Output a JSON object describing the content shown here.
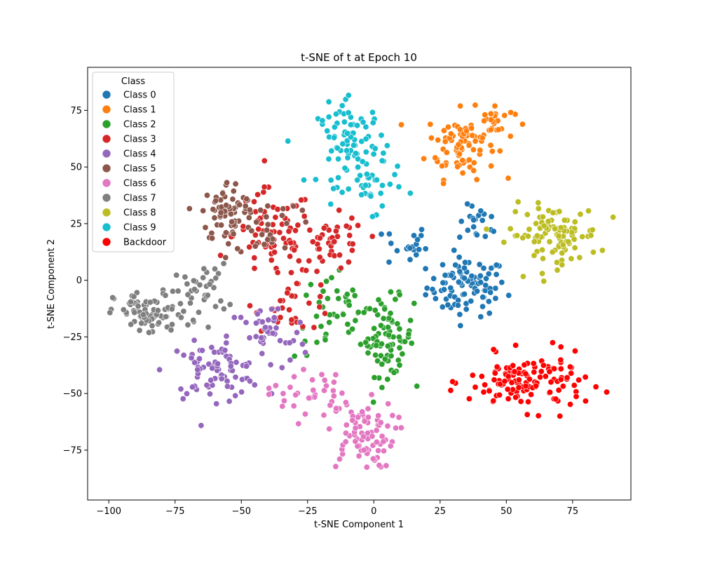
{
  "chart_data": {
    "type": "scatter",
    "title": "t-SNE of t at Epoch 10",
    "xlabel": "t-SNE Component 1",
    "ylabel": "t-SNE Component 2",
    "xlim": [
      -108,
      97
    ],
    "ylim": [
      -97,
      94
    ],
    "xticks": [
      -100,
      -75,
      -50,
      -25,
      0,
      25,
      50,
      75
    ],
    "yticks": [
      -75,
      -50,
      -25,
      0,
      25,
      50,
      75
    ],
    "grid": false,
    "legend": {
      "title": "Class",
      "placement": "top-left"
    },
    "marker_edge_color": "#ffffff",
    "series": [
      {
        "name": "Class 0",
        "color": "#1f77b4",
        "clusters": [
          {
            "cx": 35,
            "cy": -3,
            "rx": 15,
            "ry": 13,
            "n": 90
          },
          {
            "cx": 40,
            "cy": 25,
            "rx": 8,
            "ry": 8,
            "n": 20
          },
          {
            "cx": 12,
            "cy": 15,
            "rx": 8,
            "ry": 10,
            "n": 20
          }
        ]
      },
      {
        "name": "Class 1",
        "color": "#ff7f0e",
        "clusters": [
          {
            "cx": 33,
            "cy": 60,
            "rx": 13,
            "ry": 15,
            "n": 80
          },
          {
            "cx": 45,
            "cy": 70,
            "rx": 8,
            "ry": 8,
            "n": 25
          }
        ]
      },
      {
        "name": "Class 2",
        "color": "#2ca02c",
        "clusters": [
          {
            "cx": 5,
            "cy": -25,
            "rx": 10,
            "ry": 17,
            "n": 80
          },
          {
            "cx": -15,
            "cy": -15,
            "rx": 15,
            "ry": 20,
            "n": 40
          }
        ]
      },
      {
        "name": "Class 3",
        "color": "#d62728",
        "clusters": [
          {
            "cx": -38,
            "cy": 20,
            "rx": 15,
            "ry": 20,
            "n": 70
          },
          {
            "cx": -15,
            "cy": 15,
            "rx": 12,
            "ry": 13,
            "n": 45
          },
          {
            "cx": -30,
            "cy": -10,
            "rx": 15,
            "ry": 12,
            "n": 30
          }
        ]
      },
      {
        "name": "Class 4",
        "color": "#9467bd",
        "clusters": [
          {
            "cx": -60,
            "cy": -40,
            "rx": 18,
            "ry": 12,
            "n": 80
          },
          {
            "cx": -40,
            "cy": -25,
            "rx": 15,
            "ry": 15,
            "n": 40
          }
        ]
      },
      {
        "name": "Class 5",
        "color": "#8c564b",
        "clusters": [
          {
            "cx": -55,
            "cy": 30,
            "rx": 10,
            "ry": 14,
            "n": 70
          },
          {
            "cx": -40,
            "cy": 25,
            "rx": 12,
            "ry": 15,
            "n": 30
          }
        ]
      },
      {
        "name": "Class 6",
        "color": "#e377c2",
        "clusters": [
          {
            "cx": -5,
            "cy": -68,
            "rx": 13,
            "ry": 15,
            "n": 80
          },
          {
            "cx": -25,
            "cy": -50,
            "rx": 15,
            "ry": 12,
            "n": 35
          }
        ]
      },
      {
        "name": "Class 7",
        "color": "#7f7f7f",
        "clusters": [
          {
            "cx": -85,
            "cy": -15,
            "rx": 13,
            "ry": 10,
            "n": 80
          },
          {
            "cx": -65,
            "cy": -5,
            "rx": 10,
            "ry": 12,
            "n": 40
          }
        ]
      },
      {
        "name": "Class 8",
        "color": "#bcbd22",
        "clusters": [
          {
            "cx": 68,
            "cy": 20,
            "rx": 17,
            "ry": 13,
            "n": 100
          }
        ]
      },
      {
        "name": "Class 9",
        "color": "#17becf",
        "clusters": [
          {
            "cx": -8,
            "cy": 60,
            "rx": 13,
            "ry": 18,
            "n": 90
          },
          {
            "cx": 0,
            "cy": 40,
            "rx": 10,
            "ry": 10,
            "n": 25
          }
        ]
      },
      {
        "name": "Backdoor",
        "color": "#ff0000",
        "clusters": [
          {
            "cx": 58,
            "cy": -45,
            "rx": 22,
            "ry": 12,
            "n": 130
          }
        ]
      }
    ]
  }
}
